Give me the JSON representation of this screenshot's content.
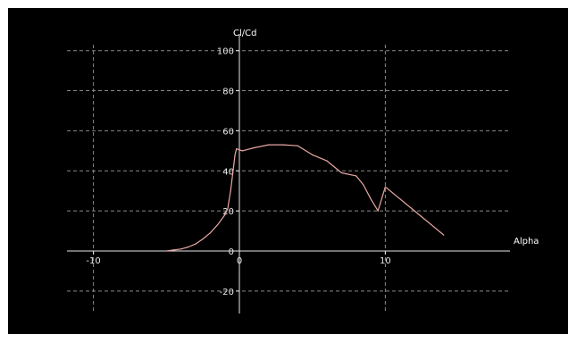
{
  "chart_data": {
    "type": "line",
    "xlabel": "Alpha",
    "ylabel": "Cl/Cd",
    "xlim": [
      -12.5,
      20
    ],
    "ylim": [
      -30,
      105
    ],
    "x_ticks": [
      -10,
      0,
      10
    ],
    "x_tick_labels": [
      "-10",
      "0",
      "10"
    ],
    "y_ticks": [
      -20,
      0,
      20,
      40,
      60,
      80,
      100
    ],
    "y_tick_labels": [
      "-20",
      "0",
      "20",
      "40",
      "60",
      "80",
      "100"
    ],
    "grid": true,
    "colors": {
      "background": "#000000",
      "grid": "#8a8a8a",
      "axis": "#e6e6e6",
      "series": "#e8a8a4",
      "text": "#e8e8e8"
    },
    "series": [
      {
        "x": [
          -5.0,
          -4.5,
          -4.0,
          -3.5,
          -3.0,
          -2.5,
          -2.0,
          -1.5,
          -1.0,
          -0.8,
          -0.6,
          -0.4,
          -0.3,
          -0.2,
          0.2,
          1.0,
          2.0,
          3.0,
          4.0,
          5.0,
          6.0,
          7.0,
          8.0,
          8.5,
          9.0,
          9.5,
          10.0,
          12.0,
          14.0
        ],
        "y": [
          0.0,
          0.5,
          1.0,
          2.0,
          3.5,
          6.0,
          9.0,
          13.0,
          18.0,
          21.0,
          30.0,
          42.0,
          48.0,
          51.0,
          50.0,
          51.5,
          53.0,
          53.0,
          52.5,
          48.0,
          45.0,
          39.0,
          37.5,
          33.0,
          26.0,
          20.0,
          32.0,
          20.0,
          8.0
        ]
      }
    ]
  }
}
